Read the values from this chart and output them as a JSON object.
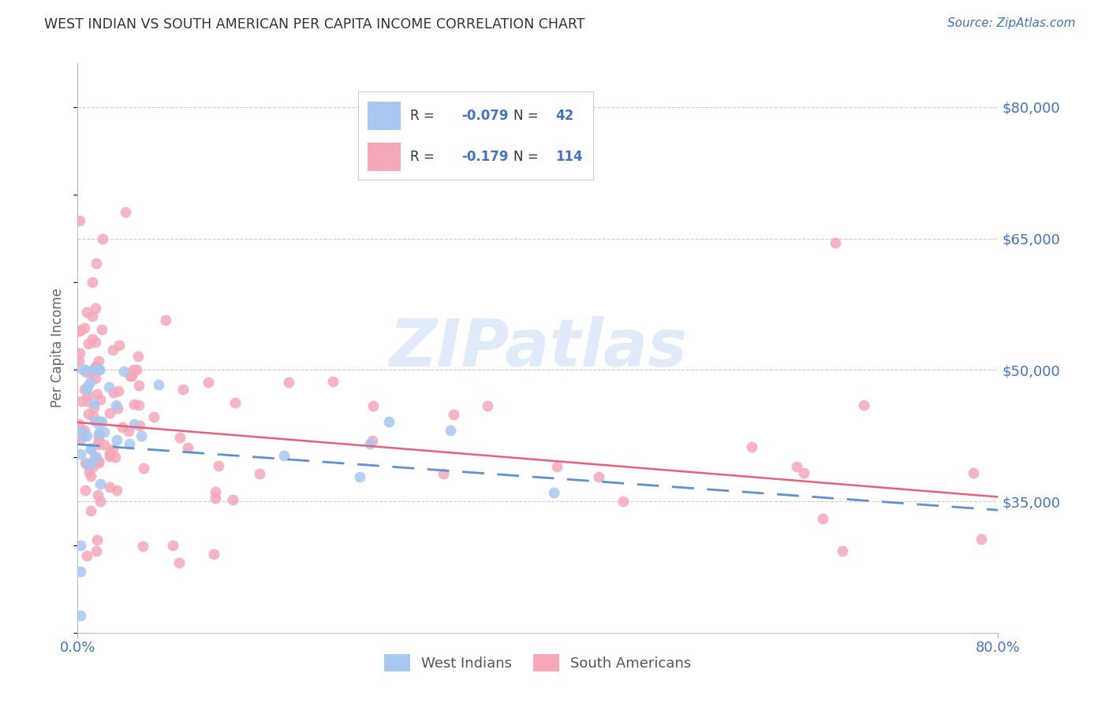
{
  "title": "WEST INDIAN VS SOUTH AMERICAN PER CAPITA INCOME CORRELATION CHART",
  "source": "Source: ZipAtlas.com",
  "ylabel": "Per Capita Income",
  "xlim": [
    0.0,
    0.8
  ],
  "ylim": [
    20000,
    85000
  ],
  "yticks": [
    35000,
    50000,
    65000,
    80000
  ],
  "ytick_labels": [
    "$35,000",
    "$50,000",
    "$65,000",
    "$80,000"
  ],
  "west_indian_color": "#a8c8f0",
  "south_american_color": "#f5a8b8",
  "south_american_line_color": "#e8607a",
  "dashed_line_color": "#6090d0",
  "R_west": -0.079,
  "N_west": 42,
  "R_south": -0.179,
  "N_south": 114,
  "accent_color": "#4472c4",
  "title_color": "#333333",
  "grid_color": "#cccccc",
  "background_color": "#ffffff",
  "west_indian_seed": 77,
  "south_american_seed": 55,
  "watermark_color": "#ccddf5",
  "watermark_alpha": 0.6
}
